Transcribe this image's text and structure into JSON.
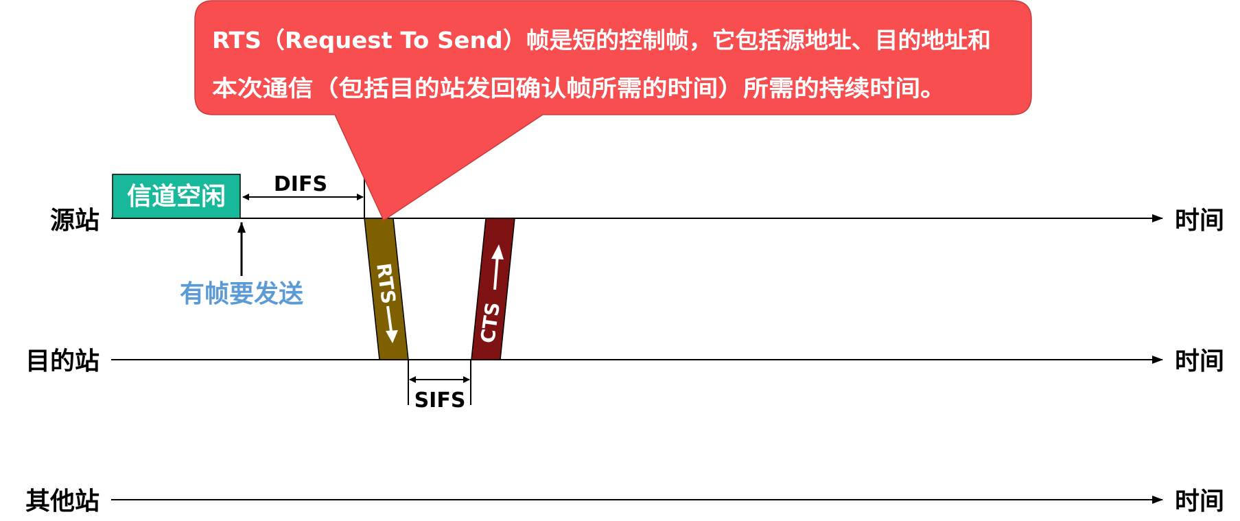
{
  "stations": {
    "source": "源站",
    "destination": "目的站",
    "others": "其他站"
  },
  "time_label": "时间",
  "channel_idle": "信道空闲",
  "has_frame": "有帧要发送",
  "difs": "DIFS",
  "sifs": "SIFS",
  "rts_frame": "RTS",
  "cts_frame": "CTS",
  "callout": {
    "line1": "RTS（Request To Send）帧是短的控制帧，它包括源地址、目的地址和",
    "line2": "本次通信（包括目的站发回确认帧所需的时间）所需的持续时间。"
  },
  "colors": {
    "channel_idle_fill": "#18B99A",
    "rts_fill": "#7F6000",
    "cts_fill": "#7F1212",
    "callout_fill": "#F84E50",
    "has_frame_text": "#5B9BD5",
    "line": "#000000"
  }
}
